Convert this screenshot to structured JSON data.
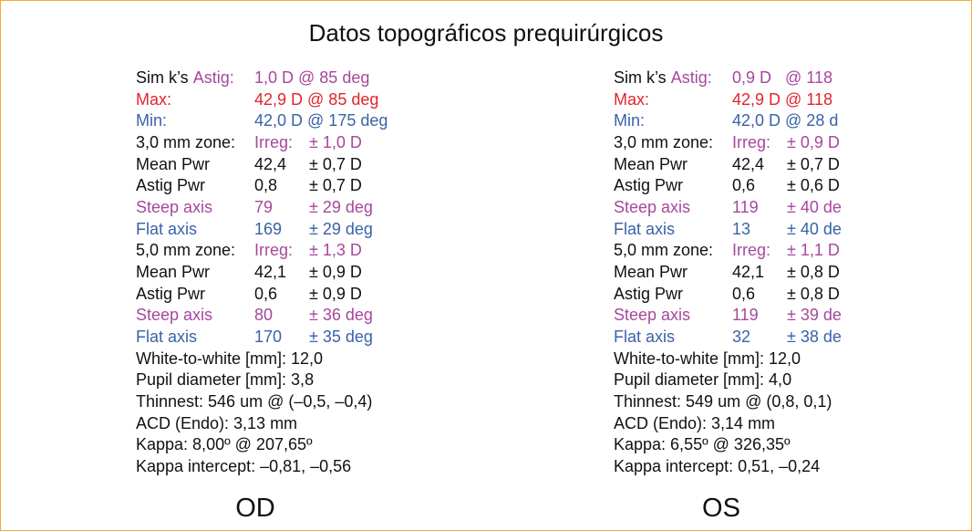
{
  "title": "Datos topográficos prequirúrgicos",
  "eyes": [
    {
      "label": "OD",
      "rows": [
        [
          [
            {
              "text": "Sim k’s",
              "color": "#111111"
            },
            {
              "text": "Astig:",
              "color": "#a6489c"
            }
          ],
          [
            {
              "text": "1,0 D @ 85 deg",
              "color": "#a6489c"
            }
          ]
        ],
        [
          [
            {
              "text": "Max:",
              "color": "#e2242b"
            }
          ],
          [
            {
              "text": "42,9 D @ 85 deg",
              "color": "#e2242b"
            }
          ]
        ],
        [
          [
            {
              "text": "Min:",
              "color": "#3a62a8"
            }
          ],
          [
            {
              "text": "42,0 D @ 175 deg",
              "color": "#3a62a8"
            }
          ]
        ],
        [
          [
            {
              "text": "3,0 mm zone:",
              "color": "#111111"
            }
          ],
          [
            {
              "text": "Irreg:",
              "color": "#a6489c"
            }
          ],
          [
            {
              "text": "± 1,0 D",
              "color": "#a6489c"
            }
          ]
        ],
        [
          [
            {
              "text": "Mean Pwr",
              "color": "#111111"
            }
          ],
          [
            {
              "text": "42,4",
              "color": "#111111"
            }
          ],
          [
            {
              "text": "± 0,7 D",
              "color": "#111111"
            }
          ]
        ],
        [
          [
            {
              "text": "Astig Pwr",
              "color": "#111111"
            }
          ],
          [
            {
              "text": "0,8",
              "color": "#111111"
            }
          ],
          [
            {
              "text": "± 0,7 D",
              "color": "#111111"
            }
          ]
        ],
        [
          [
            {
              "text": "Steep axis",
              "color": "#a6489c"
            }
          ],
          [
            {
              "text": "79",
              "color": "#a6489c"
            }
          ],
          [
            {
              "text": "± 29 deg",
              "color": "#a6489c"
            }
          ]
        ],
        [
          [
            {
              "text": "Flat axis",
              "color": "#3a62a8"
            }
          ],
          [
            {
              "text": "169",
              "color": "#3a62a8"
            }
          ],
          [
            {
              "text": "± 29 deg",
              "color": "#3a62a8"
            }
          ]
        ],
        [
          [
            {
              "text": "5,0 mm zone:",
              "color": "#111111"
            }
          ],
          [
            {
              "text": "Irreg:",
              "color": "#a6489c"
            }
          ],
          [
            {
              "text": "± 1,3 D",
              "color": "#a6489c"
            }
          ]
        ],
        [
          [
            {
              "text": "Mean Pwr",
              "color": "#111111"
            }
          ],
          [
            {
              "text": "42,1",
              "color": "#111111"
            }
          ],
          [
            {
              "text": "± 0,9 D",
              "color": "#111111"
            }
          ]
        ],
        [
          [
            {
              "text": "Astig Pwr",
              "color": "#111111"
            }
          ],
          [
            {
              "text": "0,6",
              "color": "#111111"
            }
          ],
          [
            {
              "text": "± 0,9 D",
              "color": "#111111"
            }
          ]
        ],
        [
          [
            {
              "text": "Steep axis",
              "color": "#a6489c"
            }
          ],
          [
            {
              "text": "80",
              "color": "#a6489c"
            }
          ],
          [
            {
              "text": "± 36 deg",
              "color": "#a6489c"
            }
          ]
        ],
        [
          [
            {
              "text": "Flat axis",
              "color": "#3a62a8"
            }
          ],
          [
            {
              "text": "170",
              "color": "#3a62a8"
            }
          ],
          [
            {
              "text": "± 35 deg",
              "color": "#3a62a8"
            }
          ]
        ],
        [
          [
            {
              "text": "White-to-white [mm]: 12,0",
              "color": "#111111"
            }
          ]
        ],
        [
          [
            {
              "text": "Pupil diameter [mm]: 3,8",
              "color": "#111111"
            }
          ]
        ],
        [
          [
            {
              "text": "Thinnest: 546 um @ (–0,5, –0,4)",
              "color": "#111111"
            }
          ]
        ],
        [
          [
            {
              "text": "ACD (Endo): 3,13 mm",
              "color": "#111111"
            }
          ]
        ],
        [
          [
            {
              "text": "Kappa: 8,00º @ 207,65º",
              "color": "#111111"
            }
          ]
        ],
        [
          [
            {
              "text": "Kappa intercept: –0,81, –0,56",
              "color": "#111111"
            }
          ]
        ]
      ]
    },
    {
      "label": "OS",
      "rows": [
        [
          [
            {
              "text": "Sim k’s",
              "color": "#111111"
            },
            {
              "text": "Astig:",
              "color": "#a6489c"
            }
          ],
          [
            {
              "text": "0,9 D   @ 118",
              "color": "#a6489c"
            }
          ]
        ],
        [
          [
            {
              "text": "Max:",
              "color": "#e2242b"
            }
          ],
          [
            {
              "text": "42,9 D @ 118",
              "color": "#e2242b"
            }
          ]
        ],
        [
          [
            {
              "text": "Min:",
              "color": "#3a62a8"
            }
          ],
          [
            {
              "text": "42,0 D @ 28 d",
              "color": "#3a62a8"
            }
          ]
        ],
        [
          [
            {
              "text": "3,0 mm zone:",
              "color": "#111111"
            }
          ],
          [
            {
              "text": "Irreg:",
              "color": "#a6489c"
            }
          ],
          [
            {
              "text": "± 0,9 D",
              "color": "#a6489c"
            }
          ]
        ],
        [
          [
            {
              "text": "Mean Pwr",
              "color": "#111111"
            }
          ],
          [
            {
              "text": "42,4",
              "color": "#111111"
            }
          ],
          [
            {
              "text": "± 0,7 D",
              "color": "#111111"
            }
          ]
        ],
        [
          [
            {
              "text": "Astig Pwr",
              "color": "#111111"
            }
          ],
          [
            {
              "text": "0,6",
              "color": "#111111"
            }
          ],
          [
            {
              "text": "± 0,6 D",
              "color": "#111111"
            }
          ]
        ],
        [
          [
            {
              "text": "Steep axis",
              "color": "#a6489c"
            }
          ],
          [
            {
              "text": "119",
              "color": "#a6489c"
            }
          ],
          [
            {
              "text": "± 40 de",
              "color": "#a6489c"
            }
          ]
        ],
        [
          [
            {
              "text": "Flat axis",
              "color": "#3a62a8"
            }
          ],
          [
            {
              "text": "13",
              "color": "#3a62a8"
            }
          ],
          [
            {
              "text": "± 40 de",
              "color": "#3a62a8"
            }
          ]
        ],
        [
          [
            {
              "text": "5,0 mm zone:",
              "color": "#111111"
            }
          ],
          [
            {
              "text": "Irreg:",
              "color": "#a6489c"
            }
          ],
          [
            {
              "text": "± 1,1 D",
              "color": "#a6489c"
            }
          ]
        ],
        [
          [
            {
              "text": "Mean Pwr",
              "color": "#111111"
            }
          ],
          [
            {
              "text": "42,1",
              "color": "#111111"
            }
          ],
          [
            {
              "text": "± 0,8 D",
              "color": "#111111"
            }
          ]
        ],
        [
          [
            {
              "text": "Astig Pwr",
              "color": "#111111"
            }
          ],
          [
            {
              "text": "0,6",
              "color": "#111111"
            }
          ],
          [
            {
              "text": "± 0,8 D",
              "color": "#111111"
            }
          ]
        ],
        [
          [
            {
              "text": "Steep axis",
              "color": "#a6489c"
            }
          ],
          [
            {
              "text": "119",
              "color": "#a6489c"
            }
          ],
          [
            {
              "text": "± 39 de",
              "color": "#a6489c"
            }
          ]
        ],
        [
          [
            {
              "text": "Flat axis",
              "color": "#3a62a8"
            }
          ],
          [
            {
              "text": "32",
              "color": "#3a62a8"
            }
          ],
          [
            {
              "text": "± 38 de",
              "color": "#3a62a8"
            }
          ]
        ],
        [
          [
            {
              "text": "White-to-white [mm]: 12,0",
              "color": "#111111"
            }
          ]
        ],
        [
          [
            {
              "text": "Pupil diameter [mm]: 4,0",
              "color": "#111111"
            }
          ]
        ],
        [
          [
            {
              "text": "Thinnest: 549 um @ (0,8, 0,1)",
              "color": "#111111"
            }
          ]
        ],
        [
          [
            {
              "text": "ACD (Endo): 3,14 mm",
              "color": "#111111"
            }
          ]
        ],
        [
          [
            {
              "text": "Kappa: 6,55º @ 326,35º",
              "color": "#111111"
            }
          ]
        ],
        [
          [
            {
              "text": "Kappa intercept: 0,51, –0,24",
              "color": "#111111"
            }
          ]
        ]
      ]
    }
  ]
}
